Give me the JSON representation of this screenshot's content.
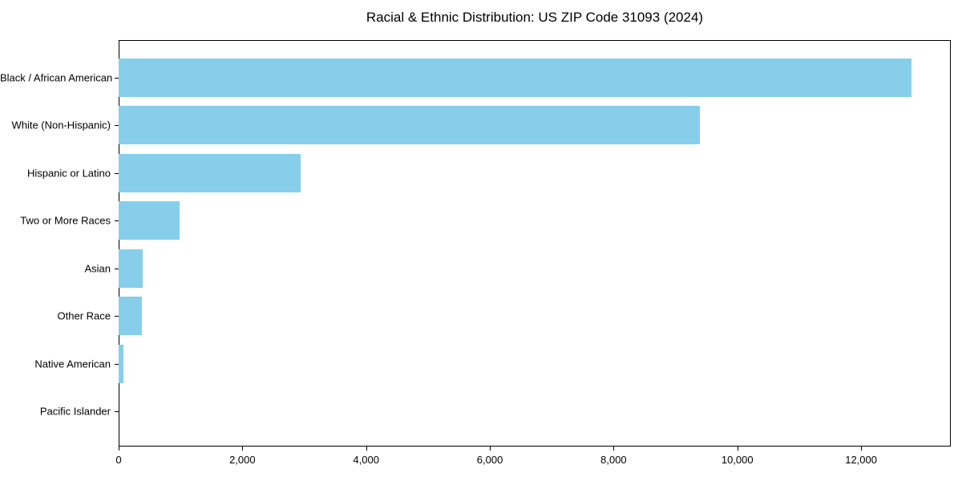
{
  "chart_data": {
    "type": "bar",
    "orientation": "horizontal",
    "title": "Racial & Ethnic Distribution: US ZIP Code 31093 (2024)",
    "categories": [
      "Black / African American",
      "White (Non-Hispanic)",
      "Hispanic or Latino",
      "Two or More Races",
      "Asian",
      "Other Race",
      "Native American",
      "Pacific Islander"
    ],
    "values": [
      12810,
      9395,
      2940,
      985,
      385,
      370,
      75,
      0
    ],
    "xlabel": "",
    "ylabel": "",
    "xlim": [
      0,
      13450
    ],
    "x_ticks": [
      0,
      2000,
      4000,
      6000,
      8000,
      10000,
      12000
    ],
    "x_tick_labels": [
      "0",
      "2,000",
      "4,000",
      "6,000",
      "8,000",
      "10,000",
      "12,000"
    ],
    "bar_color": "#87CEEB",
    "axis_color": "#000000",
    "background_color": "#ffffff",
    "grid": false,
    "legend": null
  }
}
